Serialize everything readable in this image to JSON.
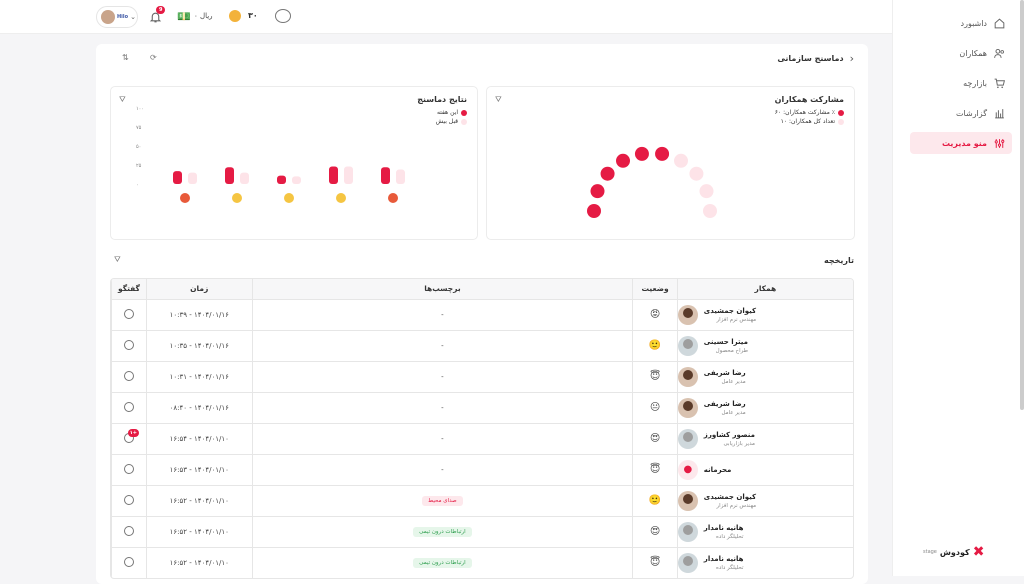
{
  "topbar": {
    "profile_name": "Hilo",
    "notifications_count": "9",
    "currency_text": "۰ ریال",
    "coins_text": "۳۰"
  },
  "sidebar": {
    "items": [
      {
        "label": "داشبورد",
        "icon": "home-icon"
      },
      {
        "label": "همکاران",
        "icon": "users-icon"
      },
      {
        "label": "بازارچه",
        "icon": "cart-icon"
      },
      {
        "label": "گزارشات",
        "icon": "chart-icon"
      },
      {
        "label": "منو مدیریت",
        "icon": "sliders-icon"
      }
    ],
    "brand": "کودوش",
    "brand_sub": "stage"
  },
  "page": {
    "breadcrumb_title": "دماسنج سازمانی",
    "back_arrow": "›"
  },
  "participation": {
    "title": "مشارکت همکاران",
    "legend_1": "مشارکت همکاران: ۶۰ ٪",
    "legend_2": "تعداد کل همکاران: ۱۰",
    "colors": {
      "active": "#e51b44",
      "inactive": "#fde3e8"
    }
  },
  "results": {
    "title": "نتایج دماسنج",
    "legend_1": "این هفته",
    "legend_2": "قبل بیش",
    "y_ticks": [
      "۱۰۰",
      "۷۵",
      "۵۰",
      "۲۵",
      "۰"
    ]
  },
  "chart_data": {
    "type": "bar",
    "categories": [
      "angry",
      "neutral",
      "slightly-smiling",
      "innocent",
      "heart-eyes"
    ],
    "series": [
      {
        "name": "این هفته",
        "values": [
          17,
          22,
          11,
          23,
          22
        ]
      },
      {
        "name": "قبل بیش",
        "values": [
          15,
          15,
          10,
          23,
          19
        ]
      }
    ],
    "ylim": [
      0,
      100
    ]
  },
  "history": {
    "title": "تاریخچه",
    "columns": [
      "همکار",
      "وضعیت",
      "برچسب‌ها",
      "زمان",
      "گفتگو"
    ],
    "rows": [
      {
        "name": "کیوان جمشیدی",
        "role": "مهندس نرم افزار",
        "mood": "angry",
        "tag": "-",
        "tag_style": "",
        "time": "۱۴۰۴/۰۱/۱۶ - ۱۰:۳۹",
        "badge": ""
      },
      {
        "name": "میترا حسینی",
        "role": "طراح محصول",
        "mood": "slightly-smiling",
        "tag": "-",
        "tag_style": "",
        "time": "۱۴۰۴/۰۱/۱۶ - ۱۰:۳۵",
        "badge": ""
      },
      {
        "name": "رضا شریفی",
        "role": "مدیر عامل",
        "mood": "innocent",
        "tag": "-",
        "tag_style": "",
        "time": "۱۴۰۴/۰۱/۱۶ - ۱۰:۳۱",
        "badge": ""
      },
      {
        "name": "رضا شریفی",
        "role": "مدیر عامل",
        "mood": "neutral",
        "tag": "-",
        "tag_style": "",
        "time": "۱۴۰۴/۰۱/۱۶ - ۰۸:۴۰",
        "badge": ""
      },
      {
        "name": "منصور کشاورز",
        "role": "مدیر بازاریابی",
        "mood": "heart-eyes",
        "tag": "-",
        "tag_style": "",
        "time": "۱۴۰۴/۰۱/۱۰ - ۱۶:۵۴",
        "badge": "+۱"
      },
      {
        "name": "محرمانه",
        "role": "",
        "mood": "innocent",
        "tag": "-",
        "tag_style": "",
        "time": "۱۴۰۴/۰۱/۱۰ - ۱۶:۵۳",
        "badge": ""
      },
      {
        "name": "کیوان جمشیدی",
        "role": "مهندس نرم افزار",
        "mood": "slightly-smiling",
        "tag": "صدای محیط",
        "tag_style": "red",
        "time": "۱۴۰۴/۰۱/۱۰ - ۱۶:۵۲",
        "badge": ""
      },
      {
        "name": "هانیه نامدار",
        "role": "تحلیلگر داده",
        "mood": "heart-eyes",
        "tag": "ارتباطات درون تیمی",
        "tag_style": "green",
        "time": "۱۴۰۴/۰۱/۱۰ - ۱۶:۵۲",
        "badge": ""
      },
      {
        "name": "هانیه نامدار",
        "role": "تحلیلگر داده",
        "mood": "innocent",
        "tag": "ارتباطات درون تیمی",
        "tag_style": "green",
        "time": "۱۴۰۴/۰۱/۱۰ - ۱۶:۵۲",
        "badge": ""
      }
    ]
  }
}
